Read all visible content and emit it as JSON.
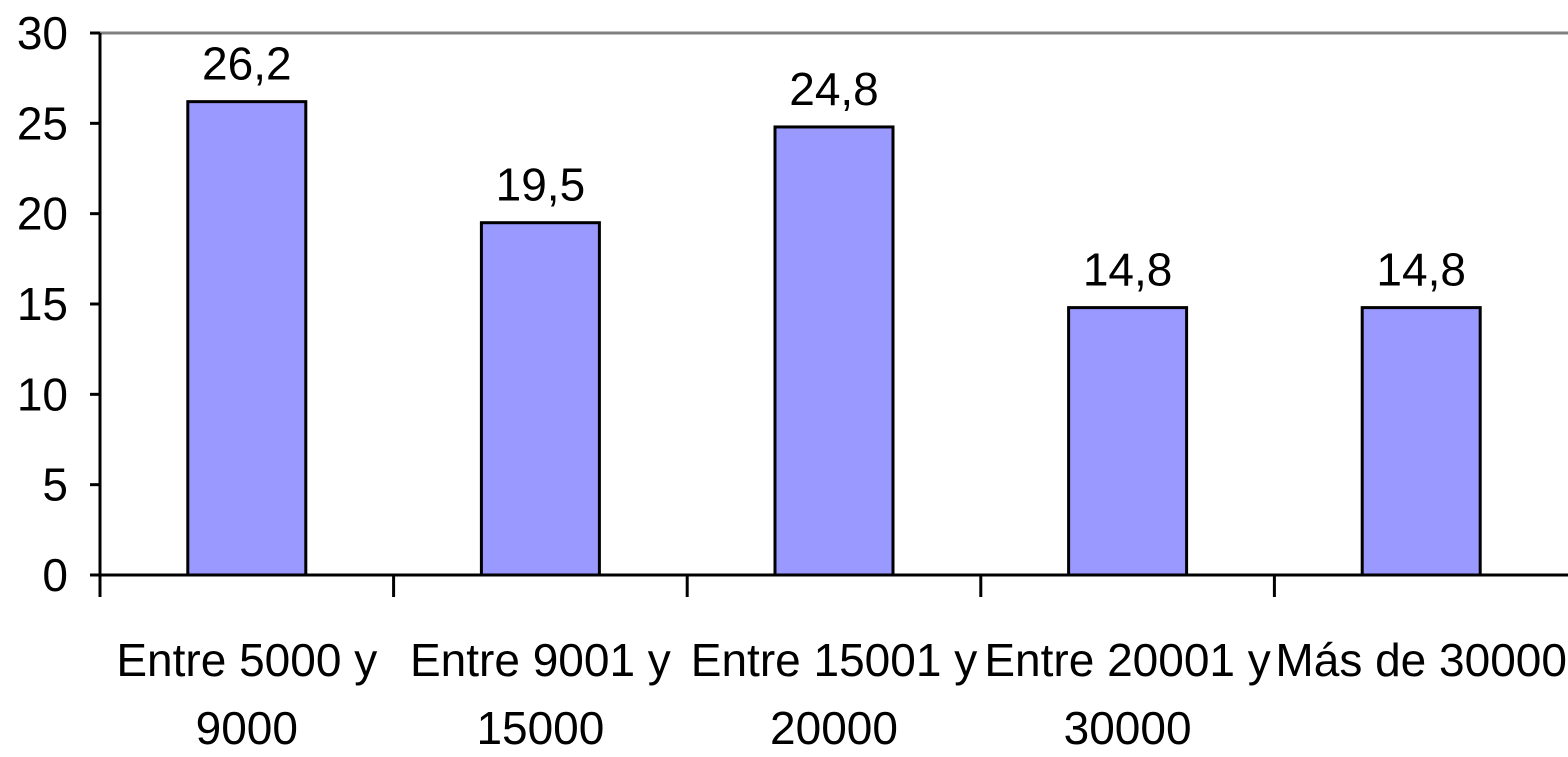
{
  "chart_data": {
    "type": "bar",
    "categories": [
      [
        "Entre 5000 y",
        "9000"
      ],
      [
        "Entre 9001 y",
        "15000"
      ],
      [
        "Entre 15001 y",
        "20000"
      ],
      [
        "Entre 20001 y",
        "30000"
      ],
      [
        "Más de 30000",
        ""
      ]
    ],
    "values": [
      26.2,
      19.5,
      24.8,
      14.8,
      14.8
    ],
    "value_labels": [
      "26,2",
      "19,5",
      "24,8",
      "14,8",
      "14,8"
    ],
    "ylim": [
      0,
      30
    ],
    "yticks": [
      "0",
      "5",
      "10",
      "15",
      "20",
      "25",
      "30"
    ],
    "grid": false,
    "bar_color": "#9999ff",
    "bar_edge_color": "#000000",
    "top_line_color": "#808080"
  }
}
